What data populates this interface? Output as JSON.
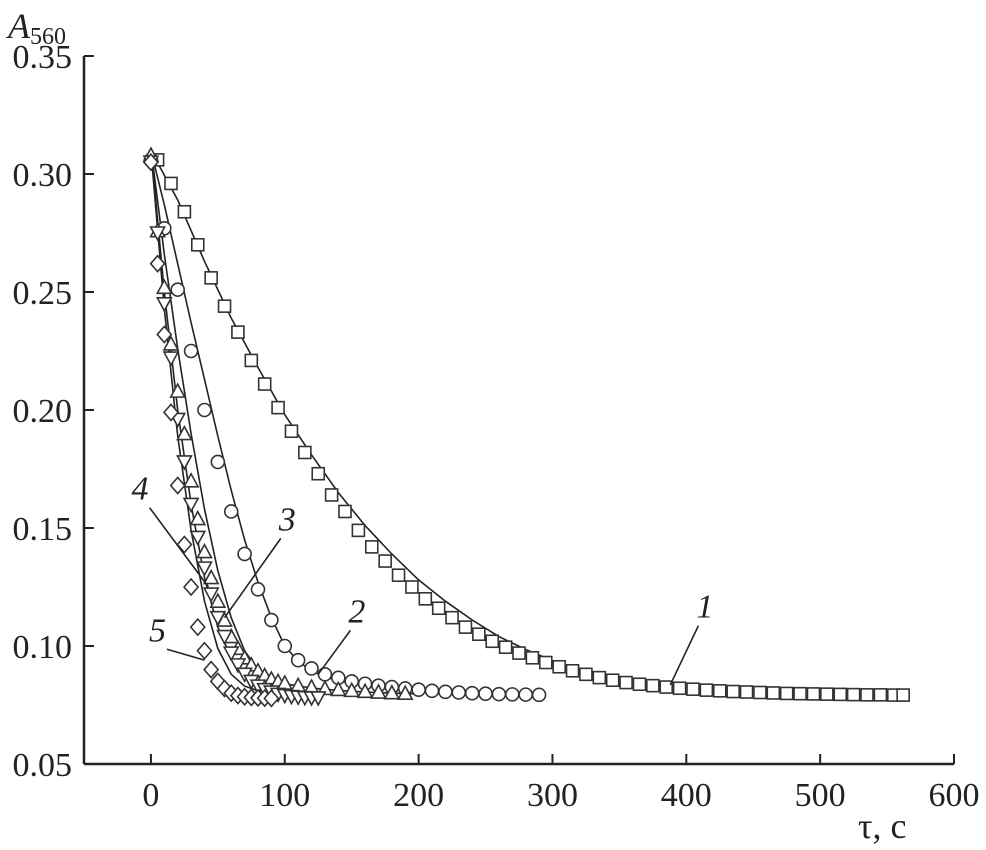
{
  "chart_data": {
    "type": "scatter",
    "title": "",
    "ylabel_main": "A",
    "ylabel_sub": "560",
    "xlabel": "τ, с",
    "xlim": [
      -50,
      600
    ],
    "ylim": [
      0.05,
      0.35
    ],
    "x_ticks": [
      0,
      100,
      200,
      300,
      400,
      500,
      600
    ],
    "x_tick_labels": [
      "0",
      "100",
      "200",
      "300",
      "400",
      "500",
      "600"
    ],
    "y_ticks": [
      0.05,
      0.1,
      0.15,
      0.2,
      0.25,
      0.3,
      0.35
    ],
    "y_tick_labels": [
      "0.05",
      "0.10",
      "0.15",
      "0.20",
      "0.25",
      "0.30",
      "0.35"
    ],
    "grid": false,
    "legend": "none",
    "series": [
      {
        "name": "1",
        "marker": "square",
        "x": [
          5,
          15,
          25,
          35,
          45,
          55,
          65,
          75,
          85,
          95,
          105,
          115,
          125,
          135,
          145,
          155,
          165,
          175,
          185,
          195,
          205,
          215,
          225,
          235,
          245,
          255,
          265,
          275,
          285,
          295,
          305,
          315,
          325,
          335,
          345,
          355,
          365,
          375,
          385,
          395,
          405,
          415,
          425,
          435,
          445,
          455,
          465,
          475,
          485,
          495,
          505,
          515,
          525,
          535,
          545,
          555,
          562
        ],
        "y": [
          0.306,
          0.296,
          0.284,
          0.27,
          0.256,
          0.244,
          0.233,
          0.221,
          0.211,
          0.201,
          0.191,
          0.182,
          0.173,
          0.164,
          0.157,
          0.149,
          0.142,
          0.136,
          0.13,
          0.125,
          0.12,
          0.116,
          0.112,
          0.108,
          0.105,
          0.102,
          0.0995,
          0.097,
          0.095,
          0.093,
          0.0912,
          0.0895,
          0.088,
          0.0866,
          0.0855,
          0.0845,
          0.0838,
          0.0832,
          0.0826,
          0.0821,
          0.0817,
          0.0813,
          0.081,
          0.0807,
          0.0805,
          0.0803,
          0.0801,
          0.0799,
          0.0798,
          0.0797,
          0.0796,
          0.0795,
          0.0794,
          0.0793,
          0.0793,
          0.0792,
          0.0792
        ],
        "fit_x": [
          0,
          20,
          40,
          60,
          80,
          100,
          120,
          140,
          160,
          180,
          200,
          220,
          240,
          260,
          280,
          300,
          320,
          340,
          360,
          380,
          400,
          420,
          440,
          460,
          480,
          500,
          520,
          540,
          560
        ],
        "fit_y": [
          0.31,
          0.289,
          0.263,
          0.239,
          0.218,
          0.198,
          0.181,
          0.165,
          0.151,
          0.139,
          0.128,
          0.119,
          0.111,
          0.104,
          0.0985,
          0.0938,
          0.0898,
          0.0866,
          0.0842,
          0.0825,
          0.0815,
          0.0808,
          0.0803,
          0.08,
          0.0798,
          0.0796,
          0.0795,
          0.0794,
          0.0793
        ]
      },
      {
        "name": "2",
        "marker": "circle",
        "x": [
          0,
          10,
          20,
          30,
          40,
          50,
          60,
          70,
          80,
          90,
          100,
          110,
          120,
          130,
          140,
          150,
          160,
          170,
          180,
          190,
          200,
          210,
          220,
          230,
          240,
          250,
          260,
          270,
          280,
          290
        ],
        "y": [
          0.306,
          0.277,
          0.251,
          0.225,
          0.2,
          0.178,
          0.157,
          0.139,
          0.124,
          0.111,
          0.1,
          0.094,
          0.0905,
          0.088,
          0.0865,
          0.085,
          0.084,
          0.0832,
          0.0826,
          0.082,
          0.0815,
          0.081,
          0.0806,
          0.0803,
          0.08,
          0.0798,
          0.0796,
          0.0795,
          0.0794,
          0.0793
        ],
        "fit_x": [
          0,
          10,
          20,
          30,
          40,
          50,
          60,
          70,
          80,
          90,
          100,
          110,
          120,
          130,
          140,
          150,
          170,
          190,
          210,
          230,
          250,
          270,
          290
        ],
        "fit_y": [
          0.31,
          0.287,
          0.262,
          0.237,
          0.213,
          0.189,
          0.166,
          0.145,
          0.127,
          0.112,
          0.1,
          0.0935,
          0.0895,
          0.087,
          0.0853,
          0.0842,
          0.083,
          0.0822,
          0.0815,
          0.0808,
          0.0803,
          0.0799,
          0.0796
        ]
      },
      {
        "name": "3",
        "marker": "triangle",
        "x": [
          0,
          5,
          10,
          15,
          20,
          25,
          30,
          35,
          40,
          45,
          50,
          55,
          60,
          65,
          70,
          75,
          80,
          85,
          90,
          95,
          100,
          110,
          120,
          130,
          140,
          150,
          160,
          170,
          180,
          190
        ],
        "y": [
          0.308,
          0.276,
          0.252,
          0.228,
          0.208,
          0.19,
          0.17,
          0.154,
          0.14,
          0.129,
          0.119,
          0.111,
          0.104,
          0.099,
          0.095,
          0.092,
          0.0895,
          0.0875,
          0.086,
          0.085,
          0.0843,
          0.0833,
          0.0826,
          0.082,
          0.0816,
          0.0812,
          0.0808,
          0.0805,
          0.0802,
          0.08
        ],
        "fit_x": [
          0,
          10,
          20,
          30,
          40,
          50,
          60,
          70,
          80,
          90,
          100,
          120,
          140,
          160,
          180,
          200
        ],
        "fit_y": [
          0.311,
          0.266,
          0.226,
          0.19,
          0.158,
          0.132,
          0.112,
          0.098,
          0.09,
          0.086,
          0.084,
          0.0822,
          0.0812,
          0.0805,
          0.08,
          0.0797
        ]
      },
      {
        "name": "4",
        "marker": "triangle-down",
        "x": [
          0,
          5,
          10,
          15,
          20,
          25,
          30,
          35,
          40,
          45,
          50,
          55,
          60,
          65,
          70,
          75,
          80,
          85,
          90,
          95,
          100,
          105,
          110,
          115,
          120,
          125
        ],
        "y": [
          0.305,
          0.275,
          0.245,
          0.222,
          0.196,
          0.178,
          0.16,
          0.146,
          0.133,
          0.122,
          0.112,
          0.104,
          0.097,
          0.092,
          0.088,
          0.085,
          0.083,
          0.0815,
          0.0805,
          0.0795,
          0.079,
          0.0786,
          0.0783,
          0.0781,
          0.078,
          0.078
        ],
        "fit_x": [
          0,
          10,
          20,
          30,
          40,
          50,
          60,
          70,
          80,
          90,
          100,
          110,
          120,
          130
        ],
        "fit_y": [
          0.311,
          0.25,
          0.2,
          0.16,
          0.129,
          0.108,
          0.095,
          0.088,
          0.084,
          0.082,
          0.081,
          0.0805,
          0.0802,
          0.08
        ]
      },
      {
        "name": "5",
        "marker": "diamond",
        "x": [
          0,
          5,
          10,
          15,
          20,
          25,
          30,
          35,
          40,
          45,
          50,
          55,
          60,
          65,
          70,
          75,
          80,
          85,
          90
        ],
        "y": [
          0.305,
          0.262,
          0.232,
          0.199,
          0.168,
          0.143,
          0.125,
          0.108,
          0.098,
          0.09,
          0.085,
          0.082,
          0.08,
          0.079,
          0.0785,
          0.0782,
          0.078,
          0.0779,
          0.0778
        ],
        "fit_x": [
          0,
          10,
          20,
          30,
          40,
          50,
          60,
          70,
          80,
          90,
          100,
          110,
          120
        ],
        "fit_y": [
          0.31,
          0.243,
          0.189,
          0.149,
          0.119,
          0.099,
          0.088,
          0.083,
          0.081,
          0.0803,
          0.08,
          0.0799,
          0.0798
        ]
      }
    ],
    "annotations": [
      {
        "text": "1",
        "x": 415,
        "y": 0.112,
        "point_x": 388,
        "point_y": 0.0835
      },
      {
        "text": "2",
        "x": 155,
        "y": 0.11,
        "point_x": 125,
        "point_y": 0.088
      },
      {
        "text": "3",
        "x": 103,
        "y": 0.149,
        "point_x": 55,
        "point_y": 0.112
      },
      {
        "text": "4",
        "x": -7,
        "y": 0.162,
        "point_x": 43,
        "point_y": 0.125
      },
      {
        "text": "5",
        "x": 6,
        "y": 0.102,
        "point_x": 40,
        "point_y": 0.094
      }
    ]
  }
}
